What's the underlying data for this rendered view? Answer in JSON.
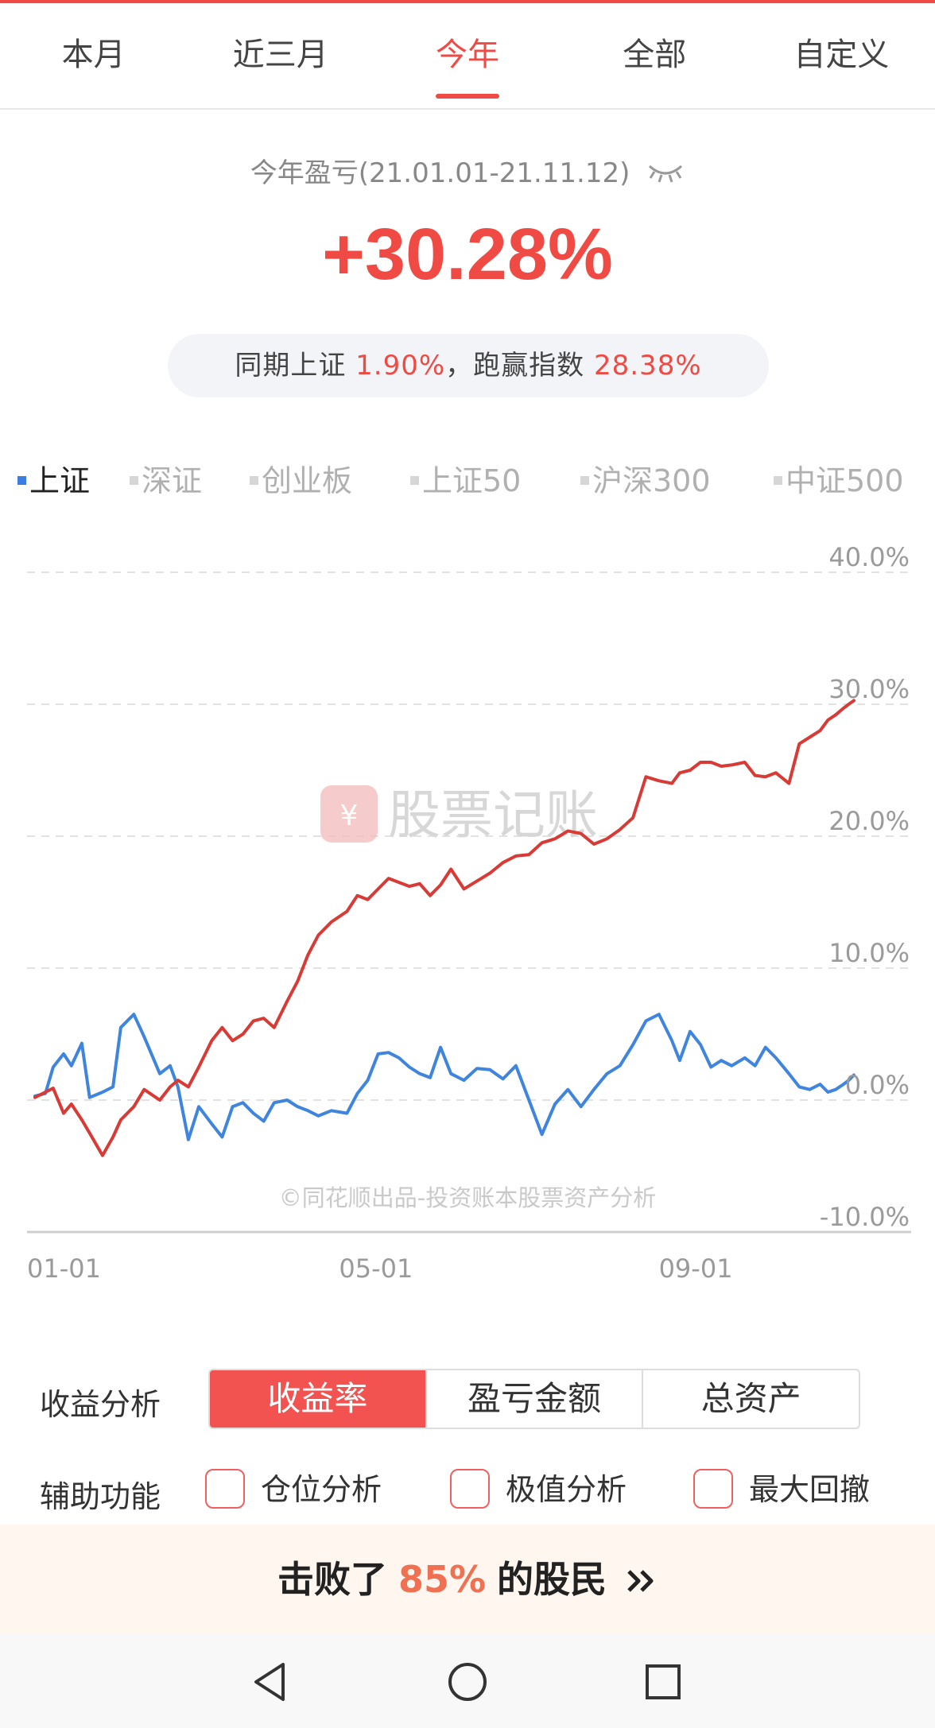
{
  "tabs": [
    {
      "label": "本月",
      "active": false
    },
    {
      "label": "近三月",
      "active": false
    },
    {
      "label": "今年",
      "active": true
    },
    {
      "label": "全部",
      "active": false
    },
    {
      "label": "自定义",
      "active": false
    }
  ],
  "summary": {
    "title": "今年盈亏(21.01.01-21.11.12)",
    "visibility_icon": "eye-closed-icon",
    "profit_pct": "+30.28%",
    "compare_prefix": "同期上证",
    "index_pct": "1.90%",
    "compare_mid": "，跑赢指数",
    "beat_pct": "28.38%"
  },
  "index_tabs": [
    {
      "label": "上证",
      "active": true
    },
    {
      "label": "深证",
      "active": false
    },
    {
      "label": "创业板",
      "active": false
    },
    {
      "label": "上证50",
      "active": false
    },
    {
      "label": "沪深300",
      "active": false
    },
    {
      "label": "中证500",
      "active": false
    }
  ],
  "chart_data": {
    "type": "line",
    "ylim": [
      -10,
      40
    ],
    "yticks": [
      "40.0%",
      "30.0%",
      "20.0%",
      "10.0%",
      "0.0%",
      "-10.0%"
    ],
    "ytick_values": [
      40,
      30,
      20,
      10,
      0,
      -10
    ],
    "xticks": [
      "01-01",
      "05-01",
      "09-01"
    ],
    "x_range": [
      "01-01",
      "11-12"
    ],
    "grid": "dashed-horizontal",
    "watermark": "股票记账",
    "footnote": "©同花顺出品-投资账本股票资产分析",
    "series": [
      {
        "color": "#d83a35",
        "x": [
          "01-01",
          "01-05",
          "01-08",
          "01-12",
          "01-15",
          "01-19",
          "01-22",
          "01-27",
          "01-31",
          "02-03",
          "02-08",
          "02-12",
          "02-18",
          "02-22",
          "02-25",
          "03-01",
          "03-05",
          "03-10",
          "03-14",
          "03-18",
          "03-22",
          "03-26",
          "03-30",
          "04-03",
          "04-08",
          "04-12",
          "04-16",
          "04-20",
          "04-25",
          "05-01",
          "05-05",
          "05-09",
          "05-13",
          "05-17",
          "05-21",
          "05-25",
          "05-29",
          "06-02",
          "06-06",
          "06-10",
          "06-15",
          "06-20",
          "06-25",
          "06-30",
          "07-05",
          "07-10",
          "07-15",
          "07-20",
          "07-25",
          "07-30",
          "08-04",
          "08-09",
          "08-14",
          "08-19",
          "08-24",
          "08-29",
          "09-03",
          "09-06",
          "09-10",
          "09-14",
          "09-18",
          "09-22",
          "09-26",
          "10-01",
          "10-05",
          "10-09",
          "10-13",
          "10-18",
          "10-22",
          "10-26",
          "10-30",
          "11-02",
          "11-05",
          "11-08",
          "11-10",
          "11-12"
        ],
        "values": [
          0.2,
          0.6,
          0.9,
          -1.0,
          -0.3,
          -1.5,
          -2.5,
          -4.2,
          -2.8,
          -1.5,
          -0.5,
          0.8,
          0.0,
          1.0,
          1.5,
          1.0,
          2.5,
          4.5,
          5.5,
          4.5,
          5.0,
          6.0,
          6.2,
          5.5,
          7.5,
          9.0,
          11.0,
          12.5,
          13.5,
          14.3,
          15.5,
          15.2,
          16.0,
          16.8,
          16.5,
          16.2,
          16.4,
          15.5,
          16.3,
          17.5,
          16.0,
          16.6,
          17.2,
          18.0,
          18.5,
          18.6,
          19.5,
          19.8,
          20.4,
          20.2,
          19.4,
          19.8,
          20.5,
          21.4,
          24.5,
          24.2,
          24.0,
          24.8,
          25.0,
          25.6,
          25.6,
          25.3,
          25.4,
          25.6,
          24.6,
          24.5,
          24.8,
          24.0,
          27.0,
          27.5,
          28.0,
          28.8,
          29.2,
          29.7,
          30.0,
          30.28
        ]
      },
      {
        "color": "#3f85de",
        "x": [
          "01-01",
          "01-05",
          "01-08",
          "01-12",
          "01-15",
          "01-19",
          "01-22",
          "01-27",
          "01-31",
          "02-03",
          "02-08",
          "02-12",
          "02-18",
          "02-22",
          "02-25",
          "03-01",
          "03-05",
          "03-10",
          "03-14",
          "03-18",
          "03-22",
          "03-26",
          "03-30",
          "04-03",
          "04-08",
          "04-12",
          "04-16",
          "04-20",
          "04-25",
          "05-01",
          "05-05",
          "05-09",
          "05-13",
          "05-17",
          "05-21",
          "05-25",
          "05-29",
          "06-02",
          "06-06",
          "06-10",
          "06-15",
          "06-20",
          "06-25",
          "06-30",
          "07-05",
          "07-10",
          "07-15",
          "07-20",
          "07-25",
          "07-30",
          "08-04",
          "08-09",
          "08-14",
          "08-19",
          "08-24",
          "08-29",
          "09-03",
          "09-06",
          "09-10",
          "09-14",
          "09-18",
          "09-22",
          "09-26",
          "10-01",
          "10-05",
          "10-09",
          "10-13",
          "10-18",
          "10-22",
          "10-26",
          "10-30",
          "11-02",
          "11-05",
          "11-08",
          "11-10",
          "11-12"
        ],
        "values": [
          0.3,
          0.5,
          2.5,
          3.5,
          2.6,
          4.3,
          0.2,
          0.6,
          1.0,
          5.5,
          6.5,
          4.8,
          2.0,
          2.6,
          1.0,
          -3.0,
          -0.5,
          -1.8,
          -2.8,
          -0.5,
          -0.2,
          -1.0,
          -1.6,
          -0.2,
          0.0,
          -0.5,
          -0.8,
          -1.2,
          -0.8,
          -1.0,
          0.5,
          1.5,
          3.5,
          3.6,
          3.2,
          2.5,
          2.0,
          1.7,
          4.0,
          2.0,
          1.5,
          2.4,
          2.3,
          1.6,
          2.6,
          0.0,
          -2.6,
          -0.3,
          0.8,
          -0.5,
          0.8,
          2.0,
          2.6,
          4.2,
          6.0,
          6.5,
          4.5,
          3.0,
          5.2,
          4.2,
          2.5,
          3.0,
          2.6,
          3.2,
          2.6,
          4.0,
          3.2,
          2.0,
          1.0,
          0.8,
          1.2,
          0.6,
          0.8,
          1.2,
          1.5,
          1.9
        ]
      }
    ]
  },
  "analysis": {
    "label": "收益分析",
    "options": [
      {
        "label": "收益率",
        "active": true
      },
      {
        "label": "盈亏金额",
        "active": false
      },
      {
        "label": "总资产",
        "active": false
      }
    ]
  },
  "aux": {
    "label": "辅助功能",
    "options": [
      {
        "label": "仓位分析",
        "checked": false
      },
      {
        "label": "极值分析",
        "checked": false
      },
      {
        "label": "最大回撤",
        "checked": false
      }
    ]
  },
  "banner": {
    "prefix": "击败了",
    "pct": "85%",
    "suffix": "的股民",
    "arrow_icon": "double-chevron-right-icon"
  },
  "navbar": {
    "icons": [
      "back-triangle-icon",
      "home-circle-icon",
      "recents-square-icon"
    ]
  }
}
